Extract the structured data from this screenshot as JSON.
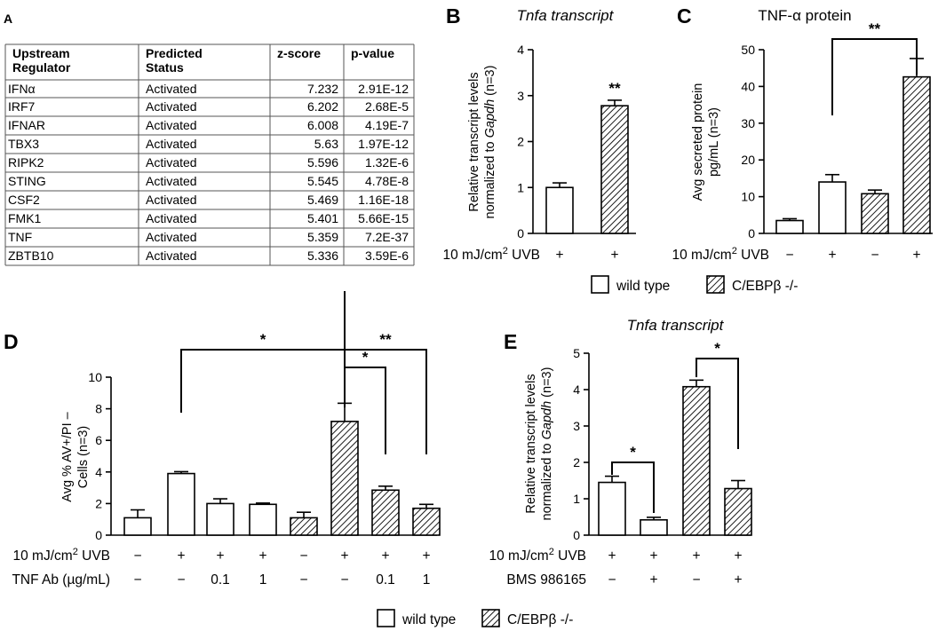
{
  "colors": {
    "ink": "#000000",
    "paper": "#ffffff",
    "table_border": "#555555"
  },
  "legend": {
    "wild_type": "wild type",
    "knockout": "C/EBPβ -/-"
  },
  "panel_a": {
    "label": "A",
    "headers": [
      [
        "Upstream",
        "Regulator"
      ],
      [
        "Predicted",
        "Status"
      ],
      [
        "z-score"
      ],
      [
        "p-value"
      ]
    ],
    "rows": [
      [
        "IFNα",
        "Activated",
        "7.232",
        "2.91E-12"
      ],
      [
        "IRF7",
        "Activated",
        "6.202",
        "2.68E-5"
      ],
      [
        "IFNAR",
        "Activated",
        "6.008",
        "4.19E-7"
      ],
      [
        "TBX3",
        "Activated",
        "5.63",
        "1.97E-12"
      ],
      [
        "RIPK2",
        "Activated",
        "5.596",
        "1.32E-6"
      ],
      [
        "STING",
        "Activated",
        "5.545",
        "4.78E-8"
      ],
      [
        "CSF2",
        "Activated",
        "5.469",
        "1.16E-18"
      ],
      [
        "FMK1",
        "Activated",
        "5.401",
        "5.66E-15"
      ],
      [
        "TNF",
        "Activated",
        "5.359",
        "7.2E-37"
      ],
      [
        "ZBTB10",
        "Activated",
        "5.336",
        "3.59E-6"
      ]
    ]
  },
  "chart_data": [
    {
      "panel": "B",
      "type": "bar",
      "title": "Tnfa transcript",
      "ylabel_lines": [
        "Relative transcript levels",
        "normalized to Gapdh (n=3)"
      ],
      "ylim": [
        0,
        4
      ],
      "yticks": [
        "0",
        "1",
        "2",
        "3",
        "4"
      ],
      "values": [
        1.0,
        2.78
      ],
      "errors": [
        0.1,
        0.12
      ],
      "groups": [
        "wild type",
        "C/EBPβ -/-"
      ],
      "conditions": [
        {
          "name": "10 mJ/cm² UVB",
          "values": [
            "+",
            "+"
          ]
        }
      ],
      "annotations": [
        {
          "text": "**",
          "bar": 1
        }
      ]
    },
    {
      "panel": "C",
      "type": "bar",
      "title": "TNF-α protein",
      "ylabel_lines": [
        "Avg secreted protein",
        "pg/mL (n=3)"
      ],
      "ylim": [
        0,
        50
      ],
      "yticks": [
        "0",
        "10",
        "20",
        "30",
        "40",
        "50"
      ],
      "values": [
        3.5,
        14,
        10.8,
        42.6
      ],
      "errors": [
        0.5,
        2,
        1,
        5
      ],
      "groups": [
        "wild type",
        "wild type",
        "C/EBPβ -/-",
        "C/EBPβ -/-"
      ],
      "conditions": [
        {
          "name": "10 mJ/cm² UVB",
          "values": [
            "−",
            "+",
            "−",
            "+"
          ]
        }
      ],
      "annotations": [
        {
          "text": "**",
          "from": 1,
          "to": 3
        }
      ]
    },
    {
      "panel": "D",
      "type": "bar",
      "ylabel_lines": [
        "Avg % AV+/PI –",
        "Cells (n=3)"
      ],
      "ylim": [
        0,
        10
      ],
      "yticks": [
        "0",
        "2",
        "4",
        "6",
        "8",
        "10"
      ],
      "values": [
        1.1,
        3.9,
        2.0,
        1.95,
        1.1,
        7.2,
        2.85,
        1.7
      ],
      "errors": [
        0.5,
        0.12,
        0.3,
        0.08,
        0.35,
        1.15,
        0.25,
        0.25
      ],
      "groups": [
        "wild type",
        "wild type",
        "wild type",
        "wild type",
        "C/EBPβ -/-",
        "C/EBPβ -/-",
        "C/EBPβ -/-",
        "C/EBPβ -/-"
      ],
      "conditions": [
        {
          "name": "10 mJ/cm² UVB",
          "values": [
            "−",
            "+",
            "+",
            "+",
            "−",
            "+",
            "+",
            "+"
          ]
        },
        {
          "name": "TNF Ab (µg/mL)",
          "values": [
            "−",
            "−",
            "0.1",
            "1",
            "−",
            "−",
            "0.1",
            "1"
          ]
        }
      ],
      "annotations": [
        {
          "text": "*",
          "from": 1,
          "to": 5
        },
        {
          "text": "*",
          "from": 5,
          "to": 6
        },
        {
          "text": "**",
          "from": 5,
          "to": 7
        }
      ]
    },
    {
      "panel": "E",
      "type": "bar",
      "title": "Tnfa transcript",
      "ylabel_lines": [
        "Relative transcript levels",
        "normalized to Gapdh (n=3)"
      ],
      "ylim": [
        0,
        5
      ],
      "yticks": [
        "0",
        "1",
        "2",
        "3",
        "4",
        "5"
      ],
      "values": [
        1.45,
        0.42,
        4.08,
        1.28
      ],
      "errors": [
        0.17,
        0.07,
        0.18,
        0.22
      ],
      "groups": [
        "wild type",
        "wild type",
        "C/EBPβ -/-",
        "C/EBPβ -/-"
      ],
      "conditions": [
        {
          "name": "10 mJ/cm² UVB",
          "values": [
            "+",
            "+",
            "+",
            "+"
          ]
        },
        {
          "name": "BMS 986165",
          "values": [
            "−",
            "+",
            "−",
            "+"
          ]
        }
      ],
      "annotations": [
        {
          "text": "*",
          "from": 0,
          "to": 1
        },
        {
          "text": "*",
          "from": 2,
          "to": 3
        }
      ]
    }
  ]
}
